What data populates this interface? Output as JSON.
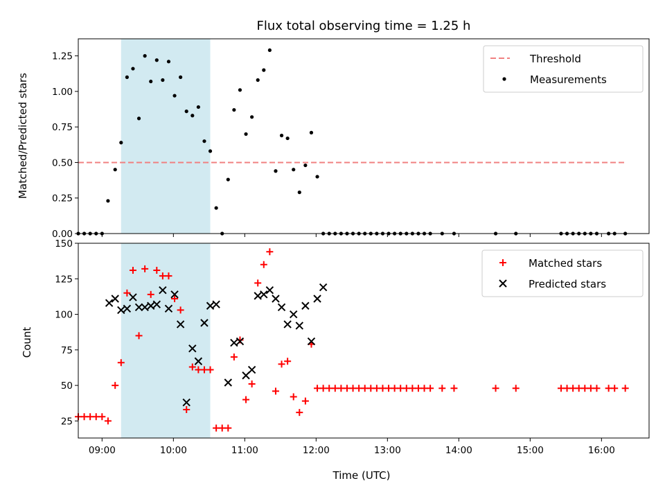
{
  "chart_data": [
    {
      "type": "scatter",
      "title": "Flux total observing time = 1.25 h",
      "xlabel": "",
      "ylabel": "Matched/Predicted stars",
      "xlim": [
        "08:40",
        "16:40"
      ],
      "ylim": [
        0,
        1.37
      ],
      "yticks": [
        "0.00",
        "0.25",
        "0.50",
        "0.75",
        "1.00",
        "1.25"
      ],
      "shaded_interval": [
        "09:16",
        "10:31"
      ],
      "shaded_color": "#add8e6",
      "threshold": {
        "value": 0.5,
        "x_start": "08:40",
        "x_end": "16:20",
        "color": "#f08080",
        "style": "dashed"
      },
      "legend": {
        "position": "top-right",
        "entries": [
          "Threshold",
          "Measurements"
        ]
      },
      "series": [
        {
          "name": "Measurements",
          "marker": "dot",
          "color": "#000000",
          "points": [
            [
              "08:40",
              0
            ],
            [
              "08:45",
              0
            ],
            [
              "08:50",
              0
            ],
            [
              "08:55",
              0
            ],
            [
              "09:00",
              0
            ],
            [
              "09:05",
              0.23
            ],
            [
              "09:11",
              0.45
            ],
            [
              "09:16",
              0.64
            ],
            [
              "09:21",
              1.1
            ],
            [
              "09:26",
              1.16
            ],
            [
              "09:31",
              0.81
            ],
            [
              "09:36",
              1.25
            ],
            [
              "09:41",
              1.07
            ],
            [
              "09:46",
              1.22
            ],
            [
              "09:51",
              1.08
            ],
            [
              "09:56",
              1.21
            ],
            [
              "10:01",
              0.97
            ],
            [
              "10:06",
              1.1
            ],
            [
              "10:11",
              0.86
            ],
            [
              "10:16",
              0.83
            ],
            [
              "10:21",
              0.89
            ],
            [
              "10:26",
              0.65
            ],
            [
              "10:31",
              0.58
            ],
            [
              "10:36",
              0.18
            ],
            [
              "10:41",
              0
            ],
            [
              "10:46",
              0.38
            ],
            [
              "10:51",
              0.87
            ],
            [
              "10:56",
              1.01
            ],
            [
              "11:01",
              0.7
            ],
            [
              "11:06",
              0.82
            ],
            [
              "11:11",
              1.08
            ],
            [
              "11:16",
              1.15
            ],
            [
              "11:21",
              1.29
            ],
            [
              "11:26",
              0.44
            ],
            [
              "11:31",
              0.69
            ],
            [
              "11:36",
              0.67
            ],
            [
              "11:41",
              0.45
            ],
            [
              "11:46",
              0.29
            ],
            [
              "11:51",
              0.48
            ],
            [
              "11:56",
              0.71
            ],
            [
              "12:01",
              0.4
            ],
            [
              "12:06",
              0
            ],
            [
              "12:11",
              0
            ],
            [
              "12:16",
              0
            ],
            [
              "12:21",
              0
            ],
            [
              "12:26",
              0
            ],
            [
              "12:31",
              0
            ],
            [
              "12:36",
              0
            ],
            [
              "12:41",
              0
            ],
            [
              "12:46",
              0
            ],
            [
              "12:51",
              0
            ],
            [
              "12:56",
              0
            ],
            [
              "13:01",
              0
            ],
            [
              "13:06",
              0
            ],
            [
              "13:11",
              0
            ],
            [
              "13:16",
              0
            ],
            [
              "13:21",
              0
            ],
            [
              "13:26",
              0
            ],
            [
              "13:31",
              0
            ],
            [
              "13:36",
              0
            ],
            [
              "13:46",
              0
            ],
            [
              "13:56",
              0
            ],
            [
              "14:31",
              0
            ],
            [
              "14:48",
              0
            ],
            [
              "15:26",
              0
            ],
            [
              "15:31",
              0
            ],
            [
              "15:36",
              0
            ],
            [
              "15:41",
              0
            ],
            [
              "15:46",
              0
            ],
            [
              "15:51",
              0
            ],
            [
              "15:56",
              0
            ],
            [
              "16:06",
              0
            ],
            [
              "16:11",
              0
            ],
            [
              "16:20",
              0
            ]
          ]
        }
      ]
    },
    {
      "type": "scatter",
      "title": "",
      "xlabel": "Time (UTC)",
      "ylabel": "Count",
      "xlim": [
        "08:40",
        "16:40"
      ],
      "ylim": [
        13,
        150
      ],
      "yticks": [
        "25",
        "50",
        "75",
        "100",
        "125",
        "150"
      ],
      "xticks": [
        "09:00",
        "10:00",
        "11:00",
        "12:00",
        "13:00",
        "14:00",
        "15:00",
        "16:00"
      ],
      "shaded_interval": [
        "09:16",
        "10:31"
      ],
      "shaded_color": "#add8e6",
      "legend": {
        "position": "top-right",
        "entries": [
          "Matched stars",
          "Predicted stars"
        ]
      },
      "series": [
        {
          "name": "Matched stars",
          "marker": "plus",
          "color": "#ff0000",
          "points": [
            [
              "08:40",
              28
            ],
            [
              "08:45",
              28
            ],
            [
              "08:50",
              28
            ],
            [
              "08:55",
              28
            ],
            [
              "09:00",
              28
            ],
            [
              "09:05",
              25
            ],
            [
              "09:11",
              50
            ],
            [
              "09:16",
              66
            ],
            [
              "09:21",
              115
            ],
            [
              "09:26",
              131
            ],
            [
              "09:31",
              85
            ],
            [
              "09:36",
              132
            ],
            [
              "09:41",
              114
            ],
            [
              "09:46",
              131
            ],
            [
              "09:51",
              127
            ],
            [
              "09:56",
              127
            ],
            [
              "10:01",
              111
            ],
            [
              "10:06",
              103
            ],
            [
              "10:11",
              33
            ],
            [
              "10:16",
              63
            ],
            [
              "10:21",
              61
            ],
            [
              "10:26",
              61
            ],
            [
              "10:31",
              61
            ],
            [
              "10:36",
              20
            ],
            [
              "10:41",
              20
            ],
            [
              "10:46",
              20
            ],
            [
              "10:51",
              70
            ],
            [
              "10:56",
              82
            ],
            [
              "11:01",
              40
            ],
            [
              "11:06",
              51
            ],
            [
              "11:11",
              122
            ],
            [
              "11:16",
              135
            ],
            [
              "11:21",
              144
            ],
            [
              "11:26",
              46
            ],
            [
              "11:31",
              65
            ],
            [
              "11:36",
              67
            ],
            [
              "11:41",
              42
            ],
            [
              "11:46",
              31
            ],
            [
              "11:51",
              39
            ],
            [
              "11:56",
              79
            ],
            [
              "12:01",
              48
            ],
            [
              "12:06",
              48
            ],
            [
              "12:11",
              48
            ],
            [
              "12:16",
              48
            ],
            [
              "12:21",
              48
            ],
            [
              "12:26",
              48
            ],
            [
              "12:31",
              48
            ],
            [
              "12:36",
              48
            ],
            [
              "12:41",
              48
            ],
            [
              "12:46",
              48
            ],
            [
              "12:51",
              48
            ],
            [
              "12:56",
              48
            ],
            [
              "13:01",
              48
            ],
            [
              "13:06",
              48
            ],
            [
              "13:11",
              48
            ],
            [
              "13:16",
              48
            ],
            [
              "13:21",
              48
            ],
            [
              "13:26",
              48
            ],
            [
              "13:31",
              48
            ],
            [
              "13:36",
              48
            ],
            [
              "13:46",
              48
            ],
            [
              "13:56",
              48
            ],
            [
              "14:31",
              48
            ],
            [
              "14:48",
              48
            ],
            [
              "15:26",
              48
            ],
            [
              "15:31",
              48
            ],
            [
              "15:36",
              48
            ],
            [
              "15:41",
              48
            ],
            [
              "15:46",
              48
            ],
            [
              "15:51",
              48
            ],
            [
              "15:56",
              48
            ],
            [
              "16:06",
              48
            ],
            [
              "16:11",
              48
            ],
            [
              "16:20",
              48
            ]
          ]
        },
        {
          "name": "Predicted stars",
          "marker": "x",
          "color": "#000000",
          "points": [
            [
              "09:06",
              108
            ],
            [
              "09:11",
              111
            ],
            [
              "09:16",
              103
            ],
            [
              "09:21",
              104
            ],
            [
              "09:26",
              112
            ],
            [
              "09:31",
              105
            ],
            [
              "09:36",
              105
            ],
            [
              "09:41",
              106
            ],
            [
              "09:46",
              107
            ],
            [
              "09:51",
              117
            ],
            [
              "09:56",
              104
            ],
            [
              "10:01",
              114
            ],
            [
              "10:06",
              93
            ],
            [
              "10:11",
              38
            ],
            [
              "10:16",
              76
            ],
            [
              "10:21",
              67
            ],
            [
              "10:26",
              94
            ],
            [
              "10:31",
              106
            ],
            [
              "10:36",
              107
            ],
            [
              "10:46",
              52
            ],
            [
              "10:51",
              80
            ],
            [
              "10:56",
              81
            ],
            [
              "11:01",
              57
            ],
            [
              "11:06",
              61
            ],
            [
              "11:11",
              113
            ],
            [
              "11:16",
              114
            ],
            [
              "11:21",
              117
            ],
            [
              "11:26",
              111
            ],
            [
              "11:31",
              105
            ],
            [
              "11:36",
              93
            ],
            [
              "11:41",
              100
            ],
            [
              "11:46",
              92
            ],
            [
              "11:51",
              106
            ],
            [
              "11:56",
              81
            ],
            [
              "12:01",
              111
            ],
            [
              "12:06",
              119
            ]
          ]
        }
      ]
    }
  ]
}
